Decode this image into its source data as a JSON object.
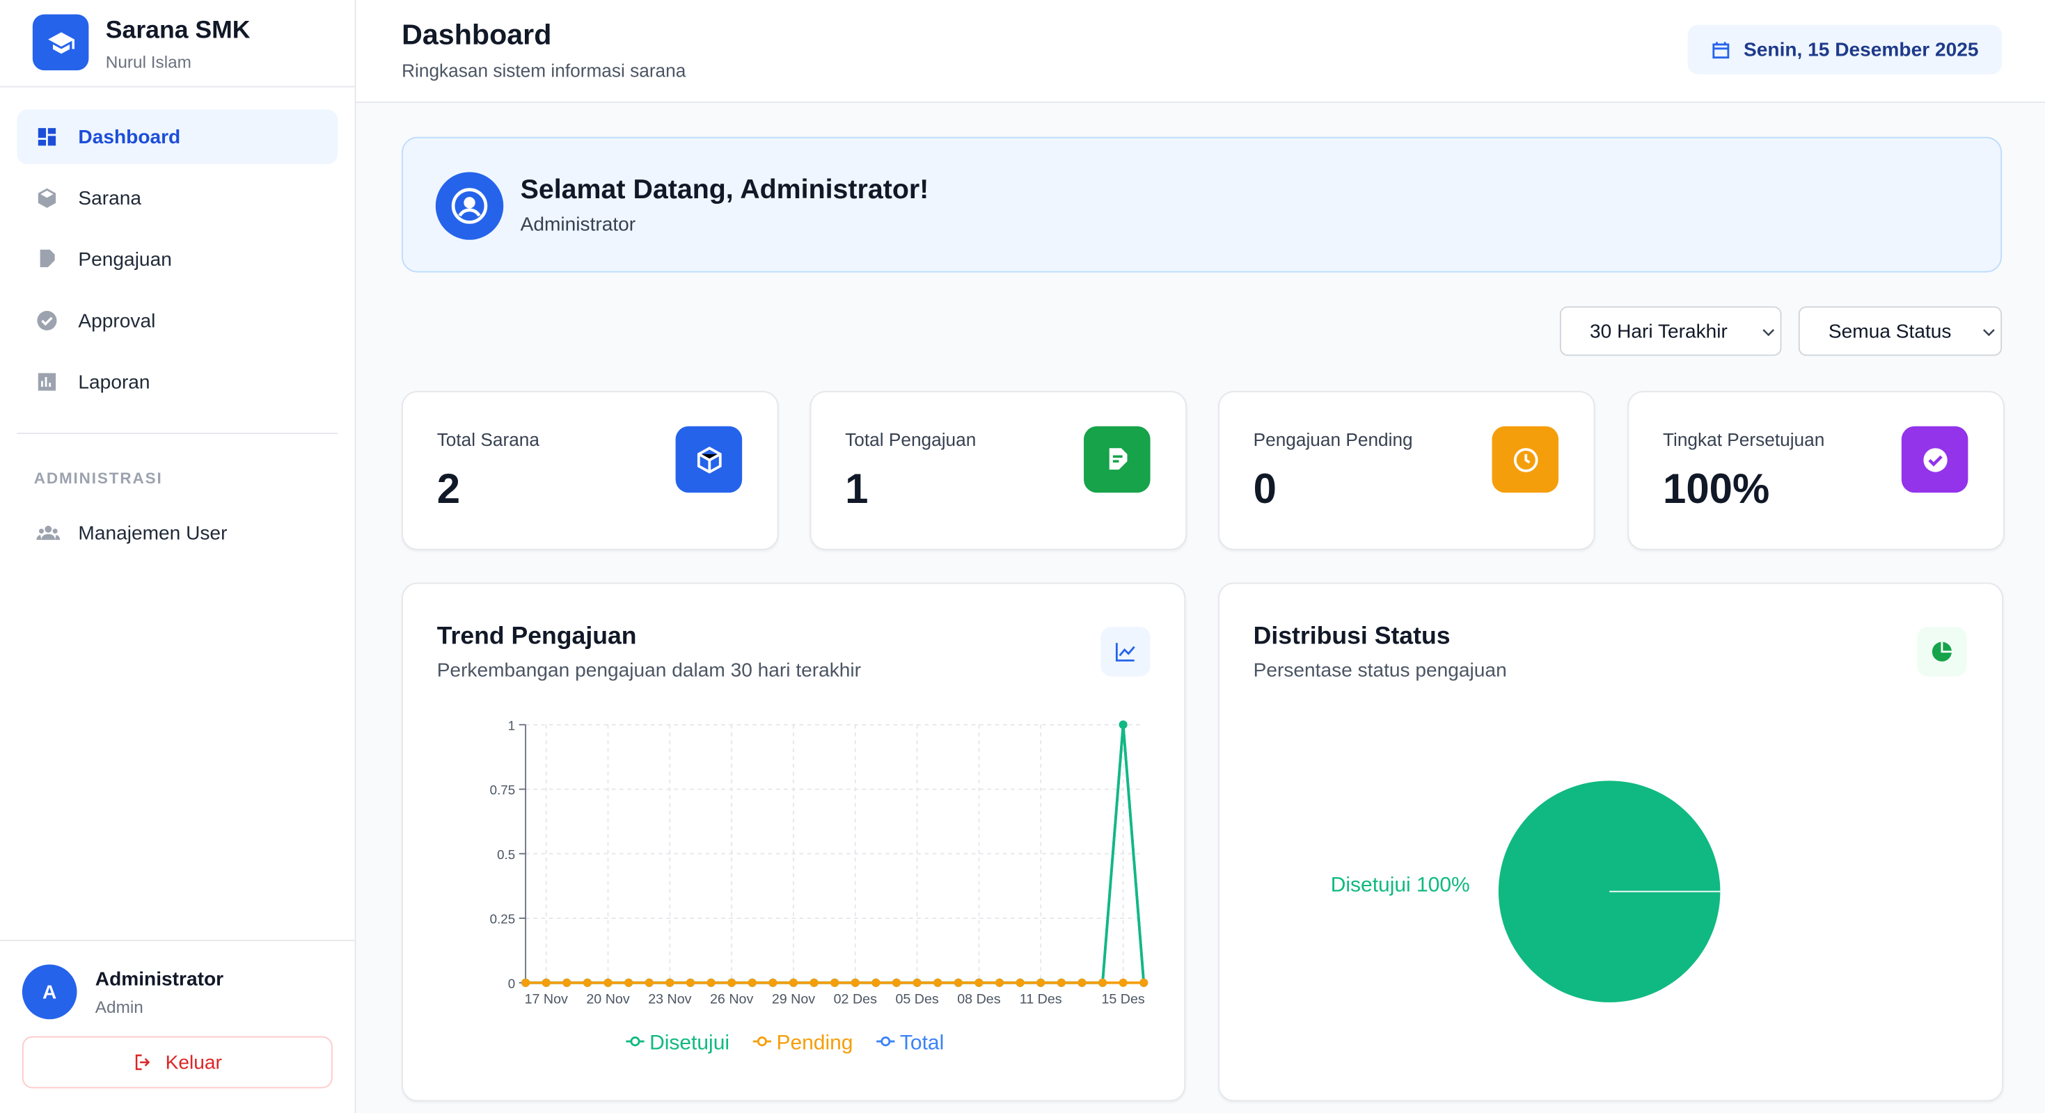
{
  "sidebar": {
    "brand": "Sarana SMK",
    "school": "Nurul Islam",
    "menu": [
      "Dashboard",
      "Sarana",
      "Pengajuan",
      "Approval",
      "Laporan"
    ],
    "section": "ADMINISTRASI",
    "admin_menu": [
      "Manajemen User"
    ],
    "user": {
      "initial": "A",
      "name": "Administrator",
      "role": "Admin"
    },
    "logout": "Keluar"
  },
  "header": {
    "title": "Dashboard",
    "subtitle": "Ringkasan sistem informasi sarana",
    "date": "Senin, 15 Desember 2025"
  },
  "welcome": {
    "title": "Selamat Datang, Administrator!",
    "role": "Administrator"
  },
  "filters": [
    "30 Hari Terakhir",
    "Semua Status"
  ],
  "stats": [
    {
      "label": "Total Sarana",
      "value": "2"
    },
    {
      "label": "Total Pengajuan",
      "value": "1"
    },
    {
      "label": "Pengajuan Pending",
      "value": "0"
    },
    {
      "label": "Tingkat Persetujuan",
      "value": "100%"
    }
  ],
  "chart_data": [
    {
      "type": "line",
      "title": "Trend Pengajuan",
      "subtitle": "Perkembangan pengajuan dalam 30 hari terakhir",
      "categories": [
        null,
        "17 Nov",
        null,
        null,
        "20 Nov",
        null,
        null,
        "23 Nov",
        null,
        null,
        "26 Nov",
        null,
        null,
        "29 Nov",
        null,
        null,
        "02 Des",
        null,
        null,
        "05 Des",
        null,
        null,
        "08 Des",
        null,
        null,
        "11 Des",
        null,
        null,
        null,
        "15 Des",
        null
      ],
      "series": [
        {
          "name": "Disetujui",
          "color": "#10b981",
          "values": [
            0,
            0,
            0,
            0,
            0,
            0,
            0,
            0,
            0,
            0,
            0,
            0,
            0,
            0,
            0,
            0,
            0,
            0,
            0,
            0,
            0,
            0,
            0,
            0,
            0,
            0,
            0,
            0,
            0,
            1,
            0
          ]
        },
        {
          "name": "Pending",
          "color": "#f59e0b",
          "values": [
            0,
            0,
            0,
            0,
            0,
            0,
            0,
            0,
            0,
            0,
            0,
            0,
            0,
            0,
            0,
            0,
            0,
            0,
            0,
            0,
            0,
            0,
            0,
            0,
            0,
            0,
            0,
            0,
            0,
            0,
            0
          ]
        },
        {
          "name": "Total",
          "color": "#3b82f6",
          "values": [
            0,
            0,
            0,
            0,
            0,
            0,
            0,
            0,
            0,
            0,
            0,
            0,
            0,
            0,
            0,
            0,
            0,
            0,
            0,
            0,
            0,
            0,
            0,
            0,
            0,
            0,
            0,
            0,
            0,
            1,
            0
          ]
        }
      ],
      "ylim": [
        0,
        1
      ],
      "yticks": [
        0,
        0.25,
        0.5,
        0.75,
        1
      ],
      "grid": true
    },
    {
      "type": "pie",
      "title": "Distribusi Status",
      "subtitle": "Persentase status pengajuan",
      "categories": [
        "Disetujui"
      ],
      "values": [
        100
      ],
      "value_labels": [
        "Disetujui 100%"
      ],
      "colors": [
        "#10b981"
      ]
    }
  ]
}
